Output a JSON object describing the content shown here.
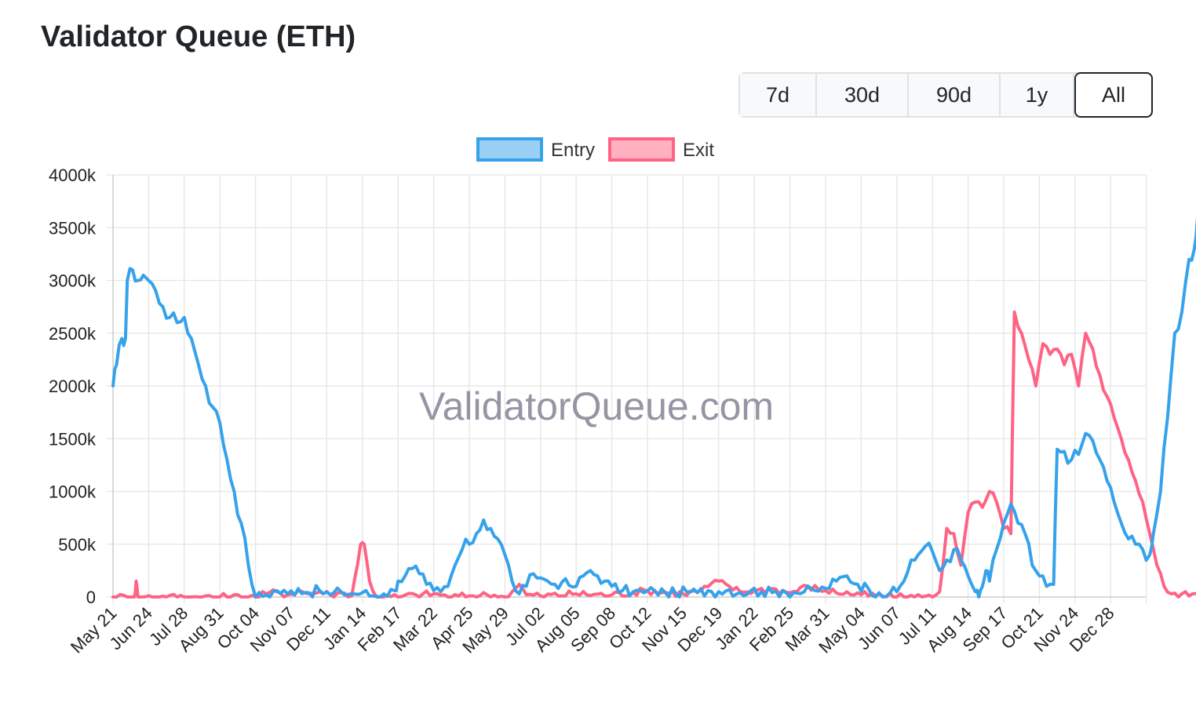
{
  "title": "Validator Queue (ETH)",
  "range_buttons": [
    {
      "label": "7d",
      "active": false
    },
    {
      "label": "30d",
      "active": false
    },
    {
      "label": "90d",
      "active": false
    },
    {
      "label": "1y",
      "active": false
    },
    {
      "label": "All",
      "active": true
    }
  ],
  "watermark": "ValidatorQueue.com",
  "colors": {
    "entry": "#36a2eb",
    "entry_fill": "#9ad0f5",
    "exit": "#ff6384",
    "exit_fill": "#ffb1c1",
    "grid": "#e5e5e5"
  },
  "chart_data": {
    "type": "line",
    "legend": "top-center",
    "grid": true,
    "ylim": [
      0,
      4000
    ],
    "yticks": [
      "0",
      "500k",
      "1000k",
      "1500k",
      "2000k",
      "2500k",
      "3000k",
      "3500k",
      "4000k"
    ],
    "ytick_values": [
      0,
      500,
      1000,
      1500,
      2000,
      2500,
      3000,
      3500,
      4000
    ],
    "y_unit": "thousand ETH",
    "x": [
      "May 21",
      "Jun 24",
      "Jul 28",
      "Aug 31",
      "Oct 04",
      "Nov 07",
      "Dec 11",
      "Jan 14",
      "Feb 17",
      "Mar 22",
      "Apr 25",
      "May 29",
      "Jul 02",
      "Aug 05",
      "Sep 08",
      "Oct 12",
      "Nov 15",
      "Dec 19",
      "Jan 22",
      "Feb 25",
      "Mar 31",
      "May 04",
      "Jun 07",
      "Jul 11",
      "Aug 14",
      "Sep 17",
      "Oct 21",
      "Nov 24",
      "Dec 28"
    ],
    "series": [
      {
        "name": "Entry",
        "points": [
          [
            0,
            2000
          ],
          [
            0.1,
            2200
          ],
          [
            0.25,
            2450
          ],
          [
            0.35,
            2450
          ],
          [
            0.4,
            3000
          ],
          [
            0.55,
            3100
          ],
          [
            0.7,
            3000
          ],
          [
            0.85,
            3050
          ],
          [
            1.0,
            3000
          ],
          [
            1.2,
            2900
          ],
          [
            1.4,
            2750
          ],
          [
            1.6,
            2650
          ],
          [
            1.8,
            2600
          ],
          [
            2.0,
            2650
          ],
          [
            2.2,
            2450
          ],
          [
            2.4,
            2200
          ],
          [
            2.6,
            2000
          ],
          [
            2.8,
            1800
          ],
          [
            3.0,
            1650
          ],
          [
            3.2,
            1300
          ],
          [
            3.4,
            1000
          ],
          [
            3.6,
            700
          ],
          [
            3.8,
            300
          ],
          [
            4.0,
            0
          ],
          [
            4.3,
            20
          ],
          [
            4.6,
            60
          ],
          [
            4.9,
            30
          ],
          [
            5.2,
            80
          ],
          [
            5.5,
            40
          ],
          [
            5.8,
            60
          ],
          [
            6.1,
            20
          ],
          [
            6.4,
            50
          ],
          [
            6.7,
            30
          ],
          [
            7.0,
            40
          ],
          [
            7.3,
            10
          ],
          [
            7.6,
            30
          ],
          [
            7.9,
            60
          ],
          [
            8.0,
            150
          ],
          [
            8.2,
            200
          ],
          [
            8.4,
            270
          ],
          [
            8.6,
            220
          ],
          [
            8.8,
            120
          ],
          [
            9.0,
            60
          ],
          [
            9.2,
            50
          ],
          [
            9.4,
            100
          ],
          [
            9.6,
            300
          ],
          [
            9.8,
            450
          ],
          [
            10.0,
            500
          ],
          [
            10.2,
            600
          ],
          [
            10.4,
            730
          ],
          [
            10.6,
            650
          ],
          [
            10.8,
            550
          ],
          [
            11.0,
            400
          ],
          [
            11.2,
            150
          ],
          [
            11.4,
            30
          ],
          [
            11.6,
            100
          ],
          [
            11.8,
            220
          ],
          [
            12.0,
            180
          ],
          [
            12.2,
            150
          ],
          [
            12.4,
            120
          ],
          [
            12.6,
            140
          ],
          [
            12.8,
            110
          ],
          [
            13.0,
            100
          ],
          [
            13.2,
            200
          ],
          [
            13.4,
            250
          ],
          [
            13.6,
            200
          ],
          [
            13.8,
            150
          ],
          [
            14.0,
            100
          ],
          [
            14.3,
            60
          ],
          [
            14.6,
            50
          ],
          [
            14.9,
            40
          ],
          [
            15.2,
            60
          ],
          [
            15.5,
            40
          ],
          [
            15.8,
            30
          ],
          [
            16.1,
            50
          ],
          [
            16.4,
            40
          ],
          [
            16.7,
            60
          ],
          [
            17.0,
            50
          ],
          [
            17.3,
            70
          ],
          [
            17.6,
            40
          ],
          [
            17.9,
            60
          ],
          [
            18.2,
            50
          ],
          [
            18.5,
            40
          ],
          [
            18.8,
            60
          ],
          [
            19.1,
            40
          ],
          [
            19.4,
            50
          ],
          [
            19.7,
            60
          ],
          [
            20.0,
            80
          ],
          [
            20.3,
            150
          ],
          [
            20.6,
            200
          ],
          [
            20.9,
            120
          ],
          [
            21.2,
            80
          ],
          [
            21.5,
            40
          ],
          [
            21.8,
            30
          ],
          [
            22.0,
            50
          ],
          [
            22.2,
            150
          ],
          [
            22.4,
            350
          ],
          [
            22.6,
            400
          ],
          [
            22.8,
            480
          ],
          [
            23.0,
            430
          ],
          [
            23.2,
            250
          ],
          [
            23.4,
            350
          ],
          [
            23.6,
            450
          ],
          [
            23.8,
            350
          ],
          [
            24.0,
            200
          ],
          [
            24.2,
            50
          ],
          [
            24.3,
            0
          ],
          [
            24.4,
            100
          ],
          [
            24.5,
            250
          ],
          [
            24.6,
            150
          ],
          [
            24.8,
            450
          ],
          [
            25.0,
            700
          ],
          [
            25.2,
            880
          ],
          [
            25.4,
            700
          ],
          [
            25.6,
            600
          ],
          [
            25.8,
            300
          ],
          [
            26.0,
            200
          ],
          [
            26.2,
            100
          ],
          [
            26.4,
            120
          ],
          [
            26.5,
            1400
          ],
          [
            26.7,
            1380
          ],
          [
            26.9,
            1300
          ],
          [
            27.1,
            1350
          ],
          [
            27.3,
            1550
          ],
          [
            27.5,
            1480
          ],
          [
            27.7,
            1300
          ],
          [
            27.9,
            1100
          ],
          [
            28.1,
            900
          ],
          [
            28.3,
            700
          ],
          [
            28.5,
            550
          ],
          [
            28.7,
            500
          ],
          [
            28.9,
            450
          ],
          [
            29.1,
            400
          ],
          [
            29.2,
            600
          ],
          [
            29.4,
            1000
          ],
          [
            29.6,
            1700
          ],
          [
            29.8,
            2500
          ],
          [
            30.0,
            2700
          ],
          [
            30.2,
            3200
          ],
          [
            30.35,
            3300
          ],
          [
            30.45,
            3650
          ]
        ]
      },
      {
        "name": "Exit",
        "points": [
          [
            0,
            0
          ],
          [
            0.6,
            0
          ],
          [
            0.65,
            150
          ],
          [
            0.7,
            0
          ],
          [
            2.0,
            0
          ],
          [
            4.0,
            0
          ],
          [
            4.3,
            30
          ],
          [
            4.6,
            50
          ],
          [
            4.9,
            20
          ],
          [
            5.2,
            60
          ],
          [
            5.5,
            30
          ],
          [
            5.8,
            50
          ],
          [
            6.1,
            20
          ],
          [
            6.4,
            40
          ],
          [
            6.7,
            10
          ],
          [
            6.95,
            500
          ],
          [
            7.05,
            500
          ],
          [
            7.2,
            150
          ],
          [
            7.4,
            0
          ],
          [
            8.0,
            0
          ],
          [
            8.5,
            20
          ],
          [
            9.0,
            30
          ],
          [
            9.5,
            0
          ],
          [
            10.0,
            10
          ],
          [
            10.5,
            20
          ],
          [
            11.0,
            0
          ],
          [
            11.2,
            50
          ],
          [
            11.4,
            120
          ],
          [
            11.6,
            20
          ],
          [
            12.0,
            10
          ],
          [
            13.0,
            30
          ],
          [
            14.0,
            20
          ],
          [
            15.0,
            60
          ],
          [
            16.0,
            30
          ],
          [
            16.5,
            60
          ],
          [
            17.0,
            150
          ],
          [
            17.3,
            100
          ],
          [
            17.6,
            50
          ],
          [
            18.0,
            60
          ],
          [
            18.5,
            80
          ],
          [
            19.0,
            40
          ],
          [
            19.5,
            100
          ],
          [
            20.0,
            60
          ],
          [
            21.0,
            20
          ],
          [
            22.0,
            0
          ],
          [
            23.0,
            0
          ],
          [
            23.2,
            50
          ],
          [
            23.4,
            650
          ],
          [
            23.6,
            600
          ],
          [
            23.8,
            300
          ],
          [
            24.0,
            800
          ],
          [
            24.2,
            900
          ],
          [
            24.4,
            850
          ],
          [
            24.6,
            1000
          ],
          [
            24.8,
            900
          ],
          [
            25.0,
            650
          ],
          [
            25.2,
            600
          ],
          [
            25.3,
            2700
          ],
          [
            25.5,
            2500
          ],
          [
            25.7,
            2250
          ],
          [
            25.9,
            2000
          ],
          [
            26.1,
            2400
          ],
          [
            26.3,
            2300
          ],
          [
            26.5,
            2350
          ],
          [
            26.7,
            2200
          ],
          [
            26.9,
            2300
          ],
          [
            27.1,
            2000
          ],
          [
            27.3,
            2500
          ],
          [
            27.5,
            2350
          ],
          [
            27.7,
            2100
          ],
          [
            27.9,
            1900
          ],
          [
            28.1,
            1700
          ],
          [
            28.3,
            1500
          ],
          [
            28.5,
            1300
          ],
          [
            28.7,
            1100
          ],
          [
            28.9,
            900
          ],
          [
            29.1,
            600
          ],
          [
            29.3,
            300
          ],
          [
            29.5,
            100
          ],
          [
            29.7,
            30
          ],
          [
            29.9,
            0
          ],
          [
            30.1,
            50
          ],
          [
            30.3,
            30
          ],
          [
            30.45,
            30
          ]
        ]
      }
    ]
  }
}
